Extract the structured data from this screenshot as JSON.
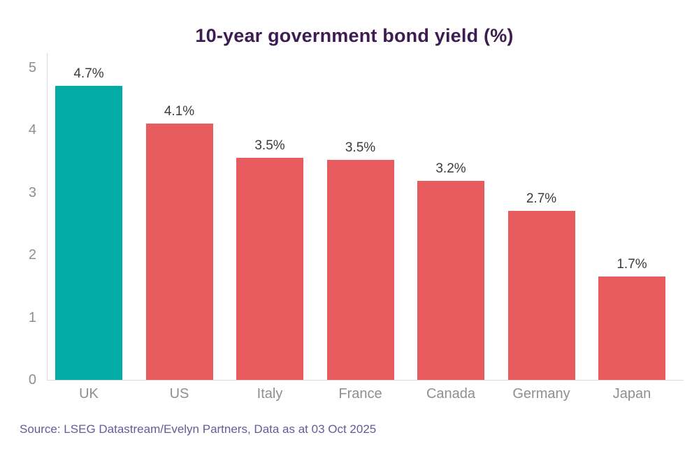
{
  "title": "10-year government bond yield (%)",
  "source": "Source: LSEG Datastream/Evelyn Partners, Data as at 03 Oct 2025",
  "colors": {
    "highlight": "#00ACA5",
    "default": "#E85B5E",
    "title": "#3D1D51",
    "source": "#675A97",
    "axis_line": "#D9DAE5",
    "tick_label": "#8E8E93",
    "value_label": "#3B3B3D",
    "background": "#FFFFFF"
  },
  "chart_data": {
    "type": "bar",
    "title": "10-year government bond yield (%)",
    "categories": [
      "UK",
      "US",
      "Italy",
      "France",
      "Canada",
      "Germany",
      "Japan"
    ],
    "values": [
      4.7,
      4.1,
      3.5,
      3.5,
      3.2,
      2.7,
      1.7
    ],
    "value_labels": [
      "4.7%",
      "4.1%",
      "3.5%",
      "3.5%",
      "3.2%",
      "2.7%",
      "1.7%"
    ],
    "plot_values": [
      4.7,
      4.1,
      3.55,
      3.52,
      3.19,
      2.7,
      1.65
    ],
    "highlight_index": 0,
    "xlabel": "",
    "ylabel": "",
    "ylim": [
      0,
      5
    ],
    "yticks": [
      0,
      1,
      2,
      3,
      4,
      5
    ],
    "grid": false,
    "legend": false
  }
}
